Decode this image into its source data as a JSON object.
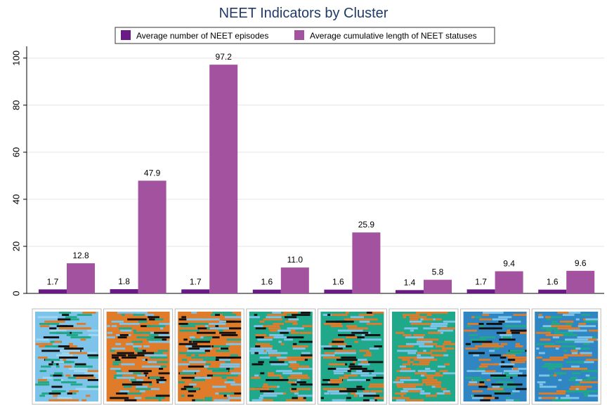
{
  "chart_data": {
    "type": "bar",
    "title": "NEET Indicators by Cluster",
    "xlabel": "",
    "ylabel": "",
    "ylim": [
      0,
      105
    ],
    "yticks": [
      0,
      20,
      40,
      60,
      80,
      100
    ],
    "grid": true,
    "legend_position": "top",
    "categories": [
      "",
      "",
      "",
      "",
      "",
      "",
      "",
      ""
    ],
    "series": [
      {
        "name": "Average number of NEET episodes",
        "color": "#6a1a84",
        "values": [
          1.7,
          1.8,
          1.7,
          1.6,
          1.6,
          1.4,
          1.7,
          1.6
        ],
        "labels": [
          "1.7",
          "1.8",
          "1.7",
          "1.6",
          "1.6",
          "1.4",
          "1.7",
          "1.6"
        ]
      },
      {
        "name": "Average cumulative length of NEET statuses",
        "color": "#a3529f",
        "values": [
          12.8,
          47.9,
          97.2,
          11.0,
          25.9,
          5.8,
          9.4,
          9.6
        ],
        "labels": [
          "12.8",
          "47.9",
          "97.2",
          "11.0",
          "25.9",
          "5.8",
          "9.4",
          "9.6"
        ]
      }
    ]
  },
  "sequence_thumbnails": [
    {
      "base": "#7ec4ea",
      "mix": [
        "#1fa98a",
        "#e07b2a",
        "#111111",
        "#9fd7f0"
      ]
    },
    {
      "base": "#e07b2a",
      "mix": [
        "#7ec4ea",
        "#1fa98a",
        "#111111"
      ]
    },
    {
      "base": "#e07b2a",
      "mix": [
        "#1fa98a",
        "#7ec4ea",
        "#111111"
      ]
    },
    {
      "base": "#1fa98a",
      "mix": [
        "#7ec4ea",
        "#e07b2a",
        "#111111"
      ]
    },
    {
      "base": "#1fa98a",
      "mix": [
        "#e07b2a",
        "#7ec4ea",
        "#111111"
      ]
    },
    {
      "base": "#1fa98a",
      "mix": [
        "#7ec4ea",
        "#e07b2a"
      ]
    },
    {
      "base": "#2f86c2",
      "mix": [
        "#1fa98a",
        "#e07b2a",
        "#111111",
        "#7ec4ea"
      ]
    },
    {
      "base": "#2f86c2",
      "mix": [
        "#1fa98a",
        "#e07b2a",
        "#7ec4ea"
      ]
    }
  ]
}
